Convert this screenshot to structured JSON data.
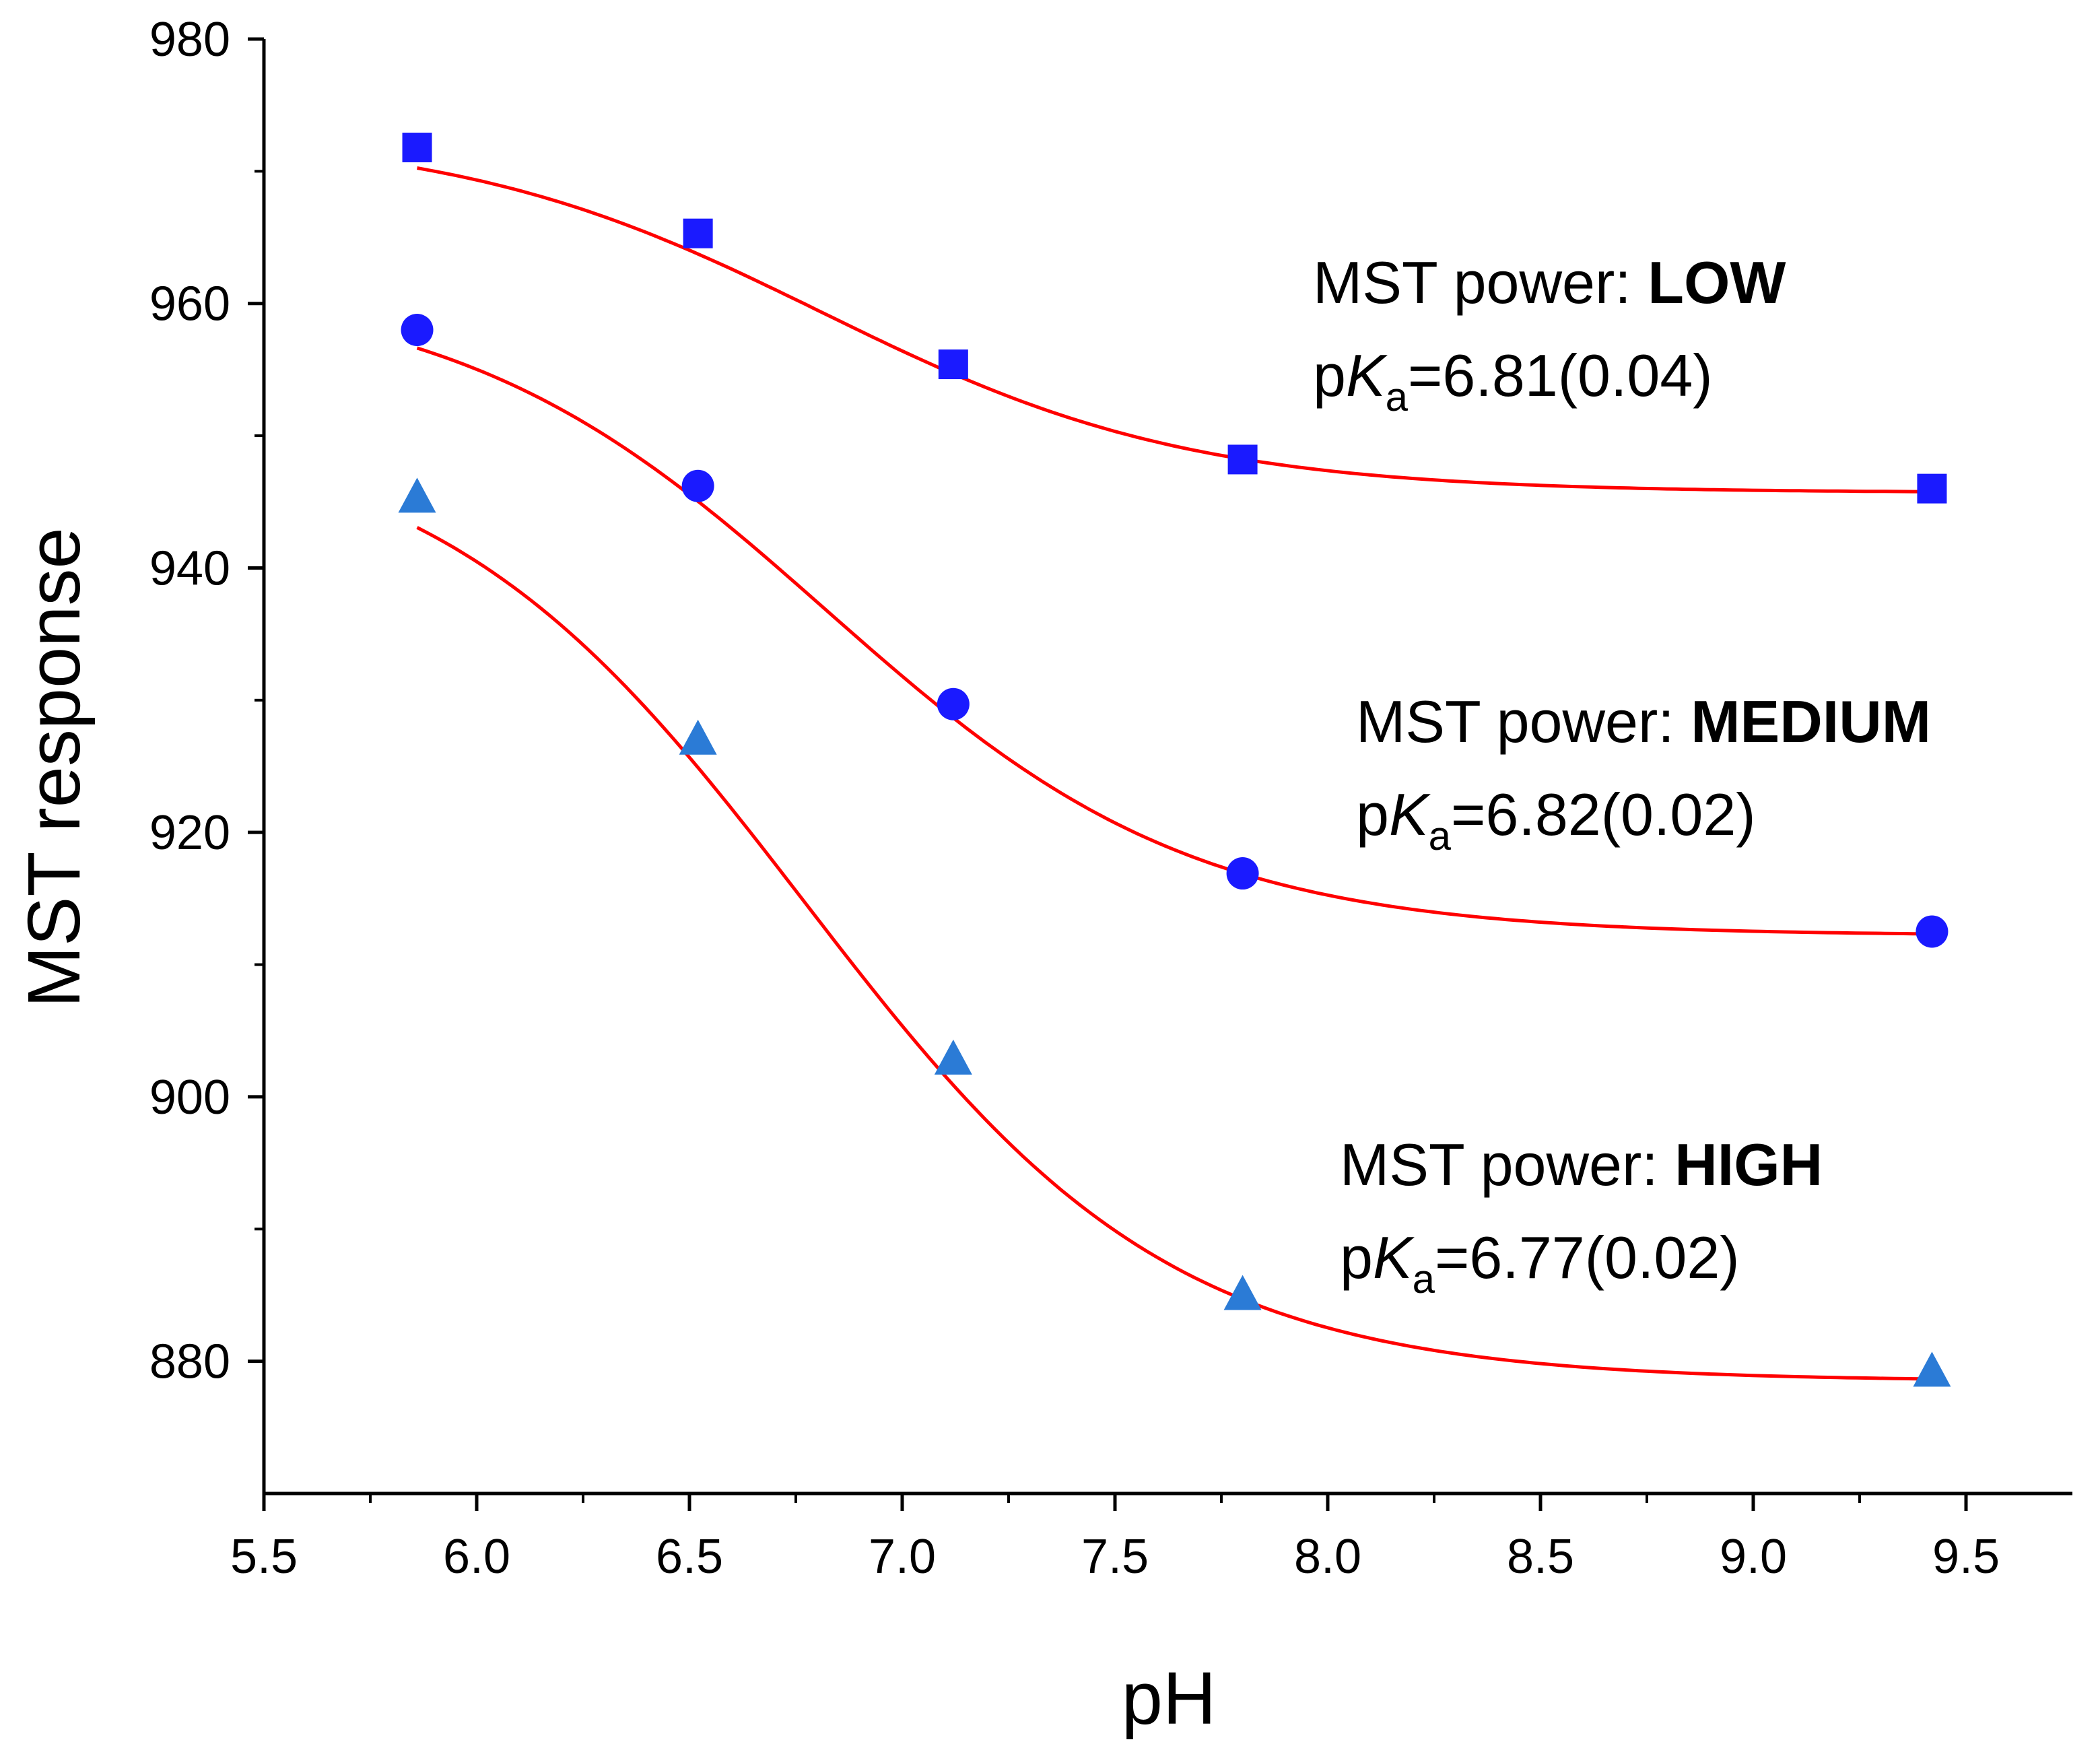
{
  "chart_data": {
    "type": "scatter",
    "title": "",
    "xlabel": "pH",
    "ylabel": "MST response",
    "xlim": [
      5.5,
      9.75
    ],
    "ylim": [
      870,
      980
    ],
    "xticks": [
      5.5,
      6.0,
      6.5,
      7.0,
      7.5,
      8.0,
      8.5,
      9.0,
      9.5
    ],
    "xtick_labels": [
      "5.5",
      "6.0",
      "6.5",
      "7.0",
      "7.5",
      "8.0",
      "8.5",
      "9.0",
      "9.5"
    ],
    "yticks": [
      880,
      900,
      920,
      940,
      960,
      980
    ],
    "ytick_labels": [
      "880",
      "900",
      "920",
      "940",
      "960",
      "980"
    ],
    "grid": false,
    "fit_color": "#ff0000",
    "series": [
      {
        "name": "MST power: LOW",
        "marker": "square",
        "color": "#1a1aff",
        "x": [
          5.86,
          6.52,
          7.12,
          7.8,
          9.42
        ],
        "y": [
          971.8,
          965.3,
          955.4,
          948.2,
          946.0
        ],
        "fit": {
          "bottom": 945.7,
          "top": 973.0,
          "pka": 6.81
        },
        "label_prefix": "MST power: ",
        "label_level": "LOW",
        "pka_text": "=6.81(0.04)"
      },
      {
        "name": "MST power: MEDIUM",
        "marker": "circle",
        "color": "#1a1aff",
        "x": [
          5.86,
          6.52,
          7.12,
          7.8,
          9.42
        ],
        "y": [
          958.0,
          946.2,
          929.7,
          916.9,
          912.5
        ],
        "fit": {
          "bottom": 912.2,
          "top": 961.5,
          "pka": 6.82
        },
        "label_prefix": "MST power: ",
        "label_level": "MEDIUM",
        "pka_text": "=6.82(0.02)"
      },
      {
        "name": "MST power: HIGH",
        "marker": "triangle",
        "color": "#2b7bd6",
        "x": [
          5.86,
          6.52,
          7.12,
          7.8,
          9.42
        ],
        "y": [
          945.3,
          927.0,
          902.8,
          885.0,
          879.2
        ],
        "fit": {
          "bottom": 878.5,
          "top": 951.0,
          "pka": 6.77
        },
        "label_prefix": "MST power: ",
        "label_level": "HIGH",
        "pka_text": "=6.77(0.02)"
      }
    ],
    "pka_symbol": {
      "p": "p",
      "K": "K",
      "a": "a"
    }
  }
}
